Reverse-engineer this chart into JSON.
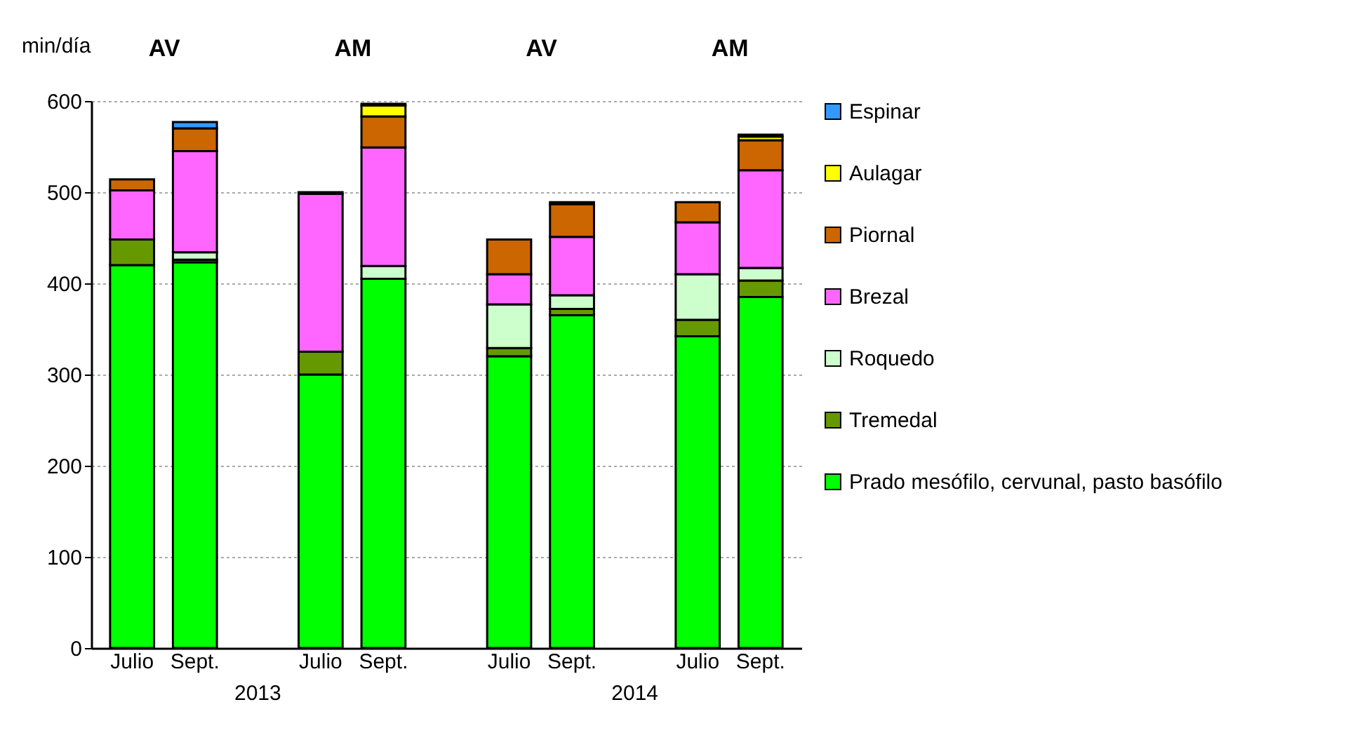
{
  "chart_data": {
    "type": "bar",
    "stacked": true,
    "ylabel": "min/día",
    "categories": [
      "Julio",
      "Sept.",
      null,
      "Julio",
      "Sept.",
      null,
      "Julio",
      "Sept.",
      null,
      "Julio",
      "Sept."
    ],
    "series": [
      {
        "name": "Prado mesófilo, cervunal, pasto basófilo",
        "color": "#00ff00",
        "values": [
          420,
          423,
          null,
          300,
          405,
          null,
          320,
          365,
          null,
          342,
          385
        ]
      },
      {
        "name": "Tremedal",
        "color": "#669900",
        "values": [
          28,
          3,
          null,
          25,
          null,
          null,
          9,
          7,
          null,
          18,
          18
        ]
      },
      {
        "name": "Roquedo",
        "color": "#ccffcc",
        "values": [
          null,
          8,
          null,
          null,
          14,
          null,
          48,
          15,
          null,
          50,
          14
        ]
      },
      {
        "name": "Brezal",
        "color": "#ff66ff",
        "values": [
          54,
          111,
          null,
          173,
          130,
          null,
          33,
          64,
          null,
          57,
          107
        ]
      },
      {
        "name": "Piornal",
        "color": "#cc6600",
        "values": [
          12,
          25,
          null,
          2,
          34,
          null,
          38,
          36,
          null,
          22,
          33
        ]
      },
      {
        "name": "Aulagar",
        "color": "#ffff00",
        "values": [
          null,
          null,
          null,
          null,
          12,
          null,
          null,
          null,
          null,
          null,
          4
        ]
      },
      {
        "name": "Espinar",
        "color": "#3399ff",
        "values": [
          null,
          7,
          null,
          null,
          2,
          null,
          null,
          2,
          null,
          null,
          2
        ]
      }
    ],
    "ylim": [
      0,
      600
    ],
    "yticks": [
      0,
      100,
      200,
      300,
      400,
      500,
      600
    ],
    "grid": "y",
    "legend": "right",
    "annotations": [
      "AV",
      "AM",
      "AV",
      "AM",
      "2013",
      "2014"
    ]
  }
}
